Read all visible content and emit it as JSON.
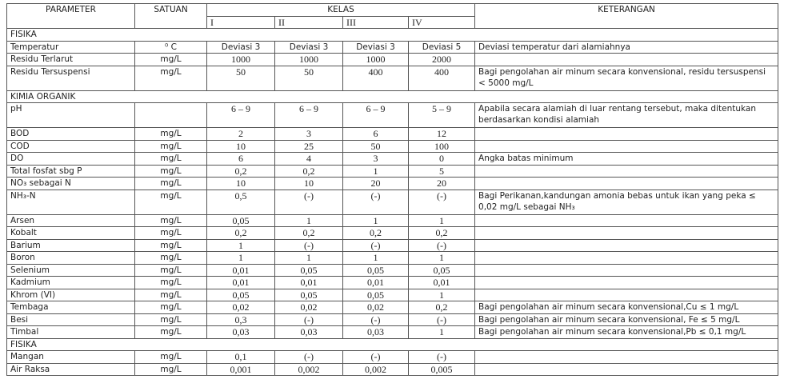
{
  "header": {
    "parameter": "PARAMETER",
    "satuan": "SATUAN",
    "kelas": "KELAS",
    "kelas_cols": [
      "I",
      "II",
      "III",
      "IV"
    ],
    "keterangan": "KETERANGAN"
  },
  "rows": [
    {
      "section": "FISIKA"
    },
    {
      "param": "Temperatur",
      "unit": "⁰ C",
      "values": [
        "Deviasi 3",
        "Deviasi 3",
        "Deviasi 3",
        "Deviasi 5"
      ],
      "note": "Deviasi temperatur dari alamiahnya"
    },
    {
      "param": "Residu Terlarut",
      "unit": "mg/L",
      "values": [
        "1000",
        "1000",
        "1000",
        "2000"
      ],
      "note": ""
    },
    {
      "param": "Residu Tersuspensi",
      "unit": "mg/L",
      "values": [
        "50",
        "50",
        "400",
        "400"
      ],
      "note": "Bagi pengolahan air minum secara konvensional, residu tersuspensi < 5000 mg/L",
      "tall": true
    },
    {
      "section": "KIMIA ORGANIK"
    },
    {
      "param": "pH",
      "unit": "",
      "values": [
        "6 – 9",
        "6 – 9",
        "6 – 9",
        "5 – 9"
      ],
      "note": "Apabila secara alamiah di luar rentang tersebut, maka ditentukan berdasarkan kondisi alamiah",
      "tall": true
    },
    {
      "param": "BOD",
      "unit": "mg/L",
      "values": [
        "2",
        "3",
        "6",
        "12"
      ],
      "note": ""
    },
    {
      "param": "COD",
      "unit": "mg/L",
      "values": [
        "10",
        "25",
        "50",
        "100"
      ],
      "note": ""
    },
    {
      "param": "DO",
      "unit": "mg/L",
      "values": [
        "6",
        "4",
        "3",
        "0"
      ],
      "note": "Angka batas minimum"
    },
    {
      "param": "Total fosfat sbg P",
      "unit": "mg/L",
      "values": [
        "0,2",
        "0,2",
        "1",
        "5"
      ],
      "note": ""
    },
    {
      "param": "NO₃ sebagai N",
      "unit": "mg/L",
      "values": [
        "10",
        "10",
        "20",
        "20"
      ],
      "note": ""
    },
    {
      "param": "NH₃-N",
      "unit": "mg/L",
      "values": [
        "0,5",
        "(-)",
        "(-)",
        "(-)"
      ],
      "note": "Bagi Perikanan,kandungan amonia bebas untuk ikan yang peka ≤ 0,02 mg/L sebagai NH₃",
      "tall": true
    },
    {
      "param": "Arsen",
      "unit": "mg/L",
      "values": [
        "0,05",
        "1",
        "1",
        "1"
      ],
      "note": ""
    },
    {
      "param": "Kobalt",
      "unit": "mg/L",
      "values": [
        "0,2",
        "0,2",
        "0,2",
        "0,2"
      ],
      "note": ""
    },
    {
      "param": "Barium",
      "unit": "mg/L",
      "values": [
        "1",
        "(-)",
        "(-)",
        "(-)"
      ],
      "note": ""
    },
    {
      "param": "Boron",
      "unit": "mg/L",
      "values": [
        "1",
        "1",
        "1",
        "1"
      ],
      "note": ""
    },
    {
      "param": "Selenium",
      "unit": "mg/L",
      "values": [
        "0,01",
        "0,05",
        "0,05",
        "0,05"
      ],
      "note": ""
    },
    {
      "param": "Kadmium",
      "unit": "mg/L",
      "values": [
        "0,01",
        "0,01",
        "0,01",
        "0,01"
      ],
      "note": ""
    },
    {
      "param": "Khrom (VI)",
      "unit": "mg/L",
      "values": [
        "0,05",
        "0,05",
        "0,05",
        "1"
      ],
      "note": ""
    },
    {
      "param": "Tembaga",
      "unit": "mg/L",
      "values": [
        "0,02",
        "0,02",
        "0,02",
        "0,2"
      ],
      "note": "Bagi pengolahan air minum secara konvensional,Cu ≤ 1 mg/L"
    },
    {
      "param": "Besi",
      "unit": "mg/L",
      "values": [
        "0,3",
        "(-)",
        "(-)",
        "(-)"
      ],
      "note": "Bagi pengolahan air minum secara konvensional, Fe ≤ 5 mg/L"
    },
    {
      "param": "Timbal",
      "unit": "mg/L",
      "values": [
        "0,03",
        "0,03",
        "0,03",
        "1"
      ],
      "note": "Bagi pengolahan air minum secara konvensional,Pb ≤ 0,1 mg/L"
    },
    {
      "section": "FISIKA"
    },
    {
      "param": "Mangan",
      "unit": "mg/L",
      "values": [
        "0,1",
        "(-)",
        "(-)",
        "(-)"
      ],
      "note": ""
    },
    {
      "param": "Air Raksa",
      "unit": "mg/L",
      "values": [
        "0,001",
        "0,002",
        "0,002",
        "0,005"
      ],
      "note": ""
    }
  ]
}
